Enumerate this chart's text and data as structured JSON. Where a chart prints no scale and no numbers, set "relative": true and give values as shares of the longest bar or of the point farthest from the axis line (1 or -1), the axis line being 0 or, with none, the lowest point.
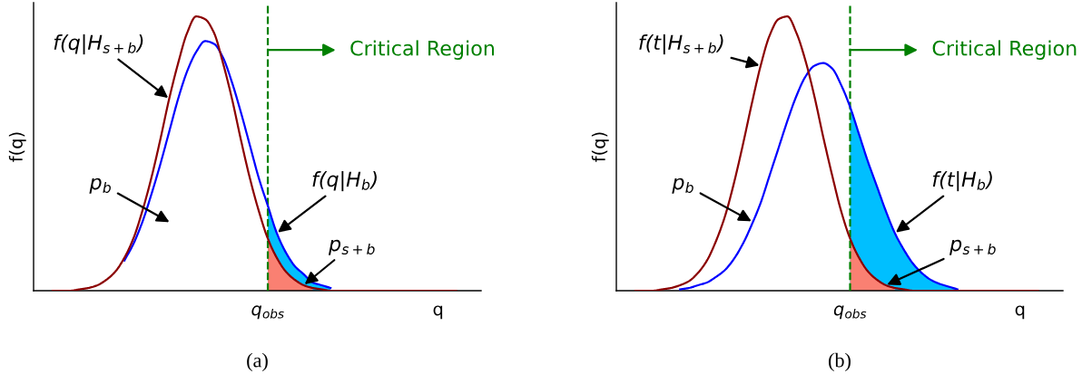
{
  "chart_data": [
    {
      "type": "line",
      "title": "(a)",
      "ylabel": "f(q)",
      "relative": true,
      "tick_labels": "x",
      "categories": [
        null,
        null,
        null,
        null,
        null,
        null,
        null,
        null,
        null,
        null,
        null,
        null,
        null,
        null,
        null,
        null,
        null,
        null,
        null,
        null,
        null,
        null,
        null,
        null,
        "q$_{obs}$",
        null,
        null,
        null,
        null,
        null,
        null,
        null,
        null,
        null,
        null,
        null,
        null,
        null,
        null,
        null,
        null,
        null,
        null,
        "q",
        null,
        null
      ],
      "series": [
        {
          "type": "area",
          "color": "#00bfff",
          "values": [
            null,
            null,
            null,
            null,
            null,
            null,
            null,
            null,
            null,
            null,
            null,
            null,
            null,
            null,
            null,
            null,
            null,
            null,
            null,
            null,
            null,
            null,
            null,
            null,
            0.31,
            0.21,
            0.14,
            0.09,
            0.06,
            0.03,
            0.02,
            0.01,
            null,
            null,
            null,
            null,
            null,
            null,
            null,
            null,
            null,
            null,
            null,
            null,
            null,
            null
          ]
        },
        {
          "type": "area",
          "name": "p$_{s+b}$",
          "color": "#fa8072",
          "values": [
            null,
            null,
            null,
            null,
            null,
            null,
            null,
            null,
            null,
            null,
            null,
            null,
            null,
            null,
            null,
            null,
            null,
            null,
            null,
            null,
            null,
            null,
            null,
            null,
            0.19,
            0.12,
            0.07,
            0.04,
            0.02,
            0.01,
            null,
            null,
            null,
            null,
            null,
            null,
            null,
            null,
            null,
            null,
            null,
            null,
            null,
            null,
            null,
            null
          ]
        },
        {
          "name": "f(q|H$_{b}$)",
          "color": "#0000ff",
          "values": [
            null,
            null,
            null,
            null,
            null,
            null,
            null,
            null,
            0.11,
            0.17,
            0.25,
            0.35,
            0.46,
            0.58,
            0.7,
            0.8,
            0.87,
            0.91,
            0.9,
            0.85,
            0.76,
            0.65,
            0.53,
            0.41,
            0.31,
            0.21,
            0.14,
            0.09,
            0.06,
            0.03,
            0.02,
            0.01,
            null,
            null,
            null,
            null,
            null,
            null,
            null,
            null,
            null,
            null,
            null,
            null,
            null,
            null
          ]
        },
        {
          "name": "f(q|H$_{s+b}$)",
          "color": "#8b0000",
          "values": [
            0,
            0,
            0,
            0.005,
            0.01,
            0.02,
            0.04,
            0.07,
            0.12,
            0.19,
            0.29,
            0.41,
            0.55,
            0.7,
            0.83,
            0.94,
            1.0,
            0.99,
            0.94,
            0.83,
            0.7,
            0.55,
            0.41,
            0.29,
            0.19,
            0.12,
            0.07,
            0.04,
            0.02,
            0.01,
            0.005,
            0,
            0,
            0,
            0,
            0,
            0,
            0,
            0,
            0,
            0,
            0,
            0,
            0,
            0,
            0
          ]
        }
      ],
      "ref_lines": [
        {
          "axis": "x",
          "value": "q$_{obs}$",
          "label": "Critical Region",
          "color": "#008000",
          "line_style": "dashed"
        }
      ],
      "annotations": [
        "p$_{b}$"
      ]
    },
    {
      "type": "line",
      "title": "(b)",
      "ylabel": "f(q)",
      "relative": true,
      "tick_labels": "x",
      "categories": [
        null,
        null,
        null,
        null,
        null,
        null,
        null,
        null,
        null,
        null,
        null,
        null,
        null,
        null,
        null,
        null,
        null,
        null,
        null,
        null,
        null,
        null,
        null,
        null,
        "q$_{obs}$",
        null,
        null,
        null,
        null,
        null,
        null,
        null,
        null,
        null,
        null,
        null,
        null,
        null,
        null,
        null,
        null,
        null,
        null,
        "q",
        null,
        null
      ],
      "series": [
        {
          "type": "area",
          "color": "#00bfff",
          "values": [
            null,
            null,
            null,
            null,
            null,
            null,
            null,
            null,
            null,
            null,
            null,
            null,
            null,
            null,
            null,
            null,
            null,
            null,
            null,
            null,
            null,
            null,
            null,
            null,
            0.67,
            0.57,
            0.47,
            0.38,
            0.29,
            0.21,
            0.15,
            0.1,
            0.065,
            0.04,
            0.025,
            0.015,
            0.005,
            null,
            null,
            null,
            null,
            null,
            null,
            null,
            null,
            null
          ]
        },
        {
          "type": "area",
          "name": "p$_{s+b}$",
          "color": "#fa8072",
          "values": [
            null,
            null,
            null,
            null,
            null,
            null,
            null,
            null,
            null,
            null,
            null,
            null,
            null,
            null,
            null,
            null,
            null,
            null,
            null,
            null,
            null,
            null,
            null,
            null,
            0.19,
            0.12,
            0.07,
            0.04,
            0.02,
            0.01,
            null,
            null,
            null,
            null,
            null,
            null,
            null,
            null,
            null,
            null,
            null,
            null,
            null,
            null,
            null,
            null
          ]
        },
        {
          "name": "f(t|H$_{b}$)",
          "color": "#0000ff",
          "values": [
            null,
            null,
            null,
            null,
            null,
            0.005,
            0.01,
            0.02,
            0.03,
            0.05,
            0.075,
            0.115,
            0.17,
            0.24,
            0.32,
            0.42,
            0.52,
            0.62,
            0.71,
            0.78,
            0.82,
            0.83,
            0.81,
            0.75,
            0.67,
            0.57,
            0.47,
            0.38,
            0.29,
            0.21,
            0.15,
            0.1,
            0.065,
            0.04,
            0.025,
            0.015,
            0.005,
            null,
            null,
            null,
            null,
            null,
            null,
            null,
            null,
            null
          ]
        },
        {
          "name": "f(t|H$_{s+b}$)",
          "color": "#8b0000",
          "values": [
            0,
            0,
            0,
            0.005,
            0.01,
            0.02,
            0.035,
            0.065,
            0.11,
            0.18,
            0.27,
            0.39,
            0.53,
            0.68,
            0.82,
            0.93,
            0.99,
            1.0,
            0.94,
            0.84,
            0.71,
            0.56,
            0.42,
            0.29,
            0.19,
            0.12,
            0.07,
            0.04,
            0.02,
            0.01,
            0.005,
            0,
            0,
            0,
            0,
            0,
            0,
            0,
            0,
            0,
            0,
            0,
            0,
            0,
            0,
            0
          ]
        }
      ],
      "ref_lines": [
        {
          "axis": "x",
          "value": "q$_{obs}$",
          "label": "Critical Region",
          "color": "#008000",
          "line_style": "dashed"
        }
      ],
      "annotations": [
        "p$_{b}$"
      ]
    }
  ]
}
